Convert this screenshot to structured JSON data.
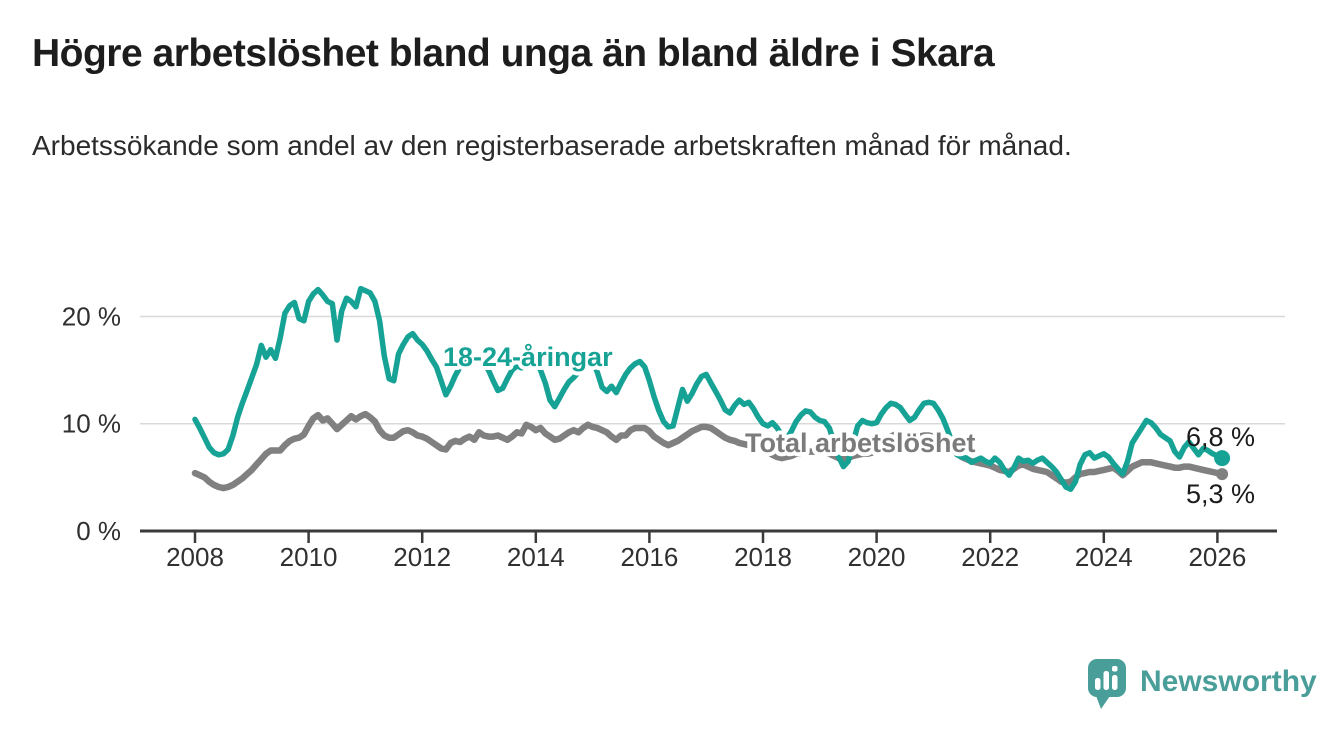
{
  "header": {
    "title": "Högre arbetslöshet bland unga än bland äldre i Skara",
    "subtitle": "Arbetssökande som andel av den registerbaserade arbetskraften månad för månad."
  },
  "chart": {
    "y_tick_labels": [
      "0 %",
      "10 %",
      "20 %"
    ],
    "x_tick_labels": [
      "2008",
      "2010",
      "2012",
      "2014",
      "2016",
      "2018",
      "2020",
      "2022",
      "2024",
      "2026"
    ],
    "youth_label": "18-24-åringar",
    "total_label": "Total arbetslöshet",
    "youth_end_label": "6,8 %",
    "total_end_label": "5,3 %",
    "colors": {
      "youth_line": "#17a296",
      "total_line": "#808080",
      "total_label_text": "#7b7b7b",
      "grid": "#d9d9d9",
      "axis": "#3a3a3a",
      "text": "#303030",
      "brand_teal": "#4a9e99"
    }
  },
  "chart_data": {
    "type": "line",
    "title": "Högre arbetslöshet bland unga än bland äldre i Skara",
    "subtitle": "Arbetssökande som andel av den registerbaserade arbetskraften månad för månad.",
    "unit": "percent",
    "x_start_year": 2008.0,
    "x_step": "1 month",
    "xlim": [
      2007.8,
      2027.0
    ],
    "ylim": [
      0,
      24
    ],
    "y_ticks": [
      0,
      10,
      20
    ],
    "x_ticks": [
      2008,
      2010,
      2012,
      2014,
      2016,
      2018,
      2020,
      2022,
      2024,
      2026
    ],
    "grid": "horizontal-only",
    "legend_position": "inline-labels",
    "series": [
      {
        "name": "18-24-åringar",
        "color": "#17a296",
        "end_value": 6.8,
        "end_value_label": "6,8 %",
        "values": [
          10.4,
          9.6,
          8.7,
          7.8,
          7.3,
          7.1,
          7.2,
          7.6,
          8.9,
          10.6,
          11.9,
          13.1,
          14.3,
          15.5,
          17.3,
          16.2,
          16.9,
          16.1,
          18.0,
          20.3,
          21.0,
          21.3,
          19.8,
          19.6,
          21.4,
          22.1,
          22.5,
          22.0,
          21.4,
          21.2,
          17.8,
          20.5,
          21.7,
          21.4,
          20.9,
          22.6,
          22.4,
          22.2,
          21.4,
          19.6,
          16.3,
          14.2,
          14.0,
          16.5,
          17.4,
          18.1,
          18.4,
          17.8,
          17.4,
          16.8,
          16.0,
          15.3,
          14.0,
          12.7,
          13.5,
          14.5,
          15.3,
          15.8,
          15.5,
          15.9,
          16.1,
          15.6,
          15.0,
          14.0,
          13.1,
          13.3,
          14.2,
          15.0,
          15.4,
          15.2,
          15.6,
          15.5,
          15.8,
          15.0,
          13.8,
          12.2,
          11.6,
          12.4,
          13.2,
          13.9,
          14.3,
          14.8,
          15.1,
          15.6,
          15.9,
          14.8,
          13.4,
          13.0,
          13.5,
          12.9,
          13.8,
          14.6,
          15.2,
          15.6,
          15.8,
          15.3,
          14.0,
          12.5,
          11.2,
          10.2,
          9.7,
          9.8,
          11.5,
          13.2,
          12.1,
          12.8,
          13.7,
          14.4,
          14.6,
          13.8,
          13.0,
          12.2,
          11.3,
          11.0,
          11.7,
          12.2,
          11.8,
          12.0,
          11.4,
          10.6,
          10.0,
          9.8,
          10.1,
          9.6,
          8.9,
          8.6,
          9.3,
          10.2,
          10.8,
          11.2,
          11.1,
          10.6,
          10.3,
          10.2,
          9.6,
          8.3,
          6.9,
          6.0,
          6.5,
          8.2,
          9.8,
          10.3,
          10.1,
          10.0,
          10.1,
          10.9,
          11.5,
          11.9,
          11.8,
          11.5,
          10.9,
          10.3,
          10.6,
          11.3,
          11.9,
          12.0,
          11.9,
          11.3,
          10.5,
          9.4,
          8.2,
          7.1,
          6.9,
          6.8,
          6.4,
          6.6,
          6.8,
          6.5,
          6.3,
          6.8,
          6.4,
          5.7,
          5.2,
          5.9,
          6.8,
          6.5,
          6.6,
          6.3,
          6.6,
          6.8,
          6.4,
          6.0,
          5.5,
          4.8,
          4.1,
          3.9,
          4.6,
          6.2,
          7.1,
          7.3,
          6.8,
          7.0,
          7.2,
          6.9,
          6.3,
          5.8,
          5.3,
          6.5,
          8.2,
          8.9,
          9.6,
          10.3,
          10.1,
          9.6,
          9.0,
          8.7,
          8.4,
          7.4,
          6.9,
          7.8,
          8.3,
          7.7,
          7.1,
          7.7,
          7.5,
          7.2,
          7.0,
          6.8
        ]
      },
      {
        "name": "Total arbetslöshet",
        "color": "#808080",
        "end_value": 5.3,
        "end_value_label": "5,3 %",
        "values": [
          5.4,
          5.2,
          5.0,
          4.6,
          4.3,
          4.1,
          4.0,
          4.1,
          4.3,
          4.6,
          4.9,
          5.3,
          5.7,
          6.2,
          6.7,
          7.2,
          7.5,
          7.5,
          7.5,
          8.0,
          8.4,
          8.6,
          8.7,
          9.0,
          9.8,
          10.5,
          10.8,
          10.3,
          10.5,
          10.0,
          9.5,
          9.9,
          10.3,
          10.7,
          10.4,
          10.7,
          10.9,
          10.6,
          10.2,
          9.4,
          8.9,
          8.7,
          8.7,
          9.0,
          9.3,
          9.4,
          9.2,
          8.9,
          8.8,
          8.6,
          8.3,
          8.0,
          7.7,
          7.6,
          8.2,
          8.4,
          8.3,
          8.6,
          8.8,
          8.5,
          9.2,
          8.9,
          8.8,
          8.8,
          8.9,
          8.7,
          8.5,
          8.8,
          9.2,
          9.1,
          9.9,
          9.7,
          9.4,
          9.6,
          9.1,
          8.8,
          8.5,
          8.6,
          8.9,
          9.2,
          9.4,
          9.2,
          9.6,
          9.9,
          9.7,
          9.6,
          9.4,
          9.2,
          8.8,
          8.5,
          8.9,
          8.9,
          9.4,
          9.6,
          9.6,
          9.6,
          9.3,
          8.8,
          8.5,
          8.2,
          8.0,
          8.2,
          8.4,
          8.7,
          9.0,
          9.3,
          9.5,
          9.7,
          9.7,
          9.6,
          9.3,
          9.0,
          8.7,
          8.5,
          8.4,
          8.2,
          8.1,
          8.0,
          7.9,
          7.8,
          7.6,
          7.4,
          7.1,
          6.9,
          6.8,
          6.9,
          7.0,
          7.2,
          7.3,
          7.4,
          7.4,
          7.4,
          7.4,
          7.4,
          7.2,
          7.0,
          6.8,
          6.7,
          6.8,
          7.0,
          7.1,
          7.2,
          7.2,
          7.3,
          7.5,
          7.9,
          8.4,
          8.8,
          9.0,
          9.1,
          9.0,
          8.9,
          8.8,
          8.8,
          8.9,
          8.9,
          8.8,
          8.6,
          8.3,
          8.0,
          7.6,
          7.2,
          6.9,
          6.7,
          6.5,
          6.4,
          6.3,
          6.2,
          6.1,
          5.9,
          5.7,
          5.6,
          5.5,
          5.8,
          6.1,
          6.2,
          6.0,
          5.8,
          5.7,
          5.6,
          5.5,
          5.2,
          4.9,
          4.6,
          4.5,
          4.6,
          5.0,
          5.3,
          5.4,
          5.5,
          5.5,
          5.6,
          5.7,
          5.8,
          5.9,
          5.6,
          5.2,
          5.6,
          6.0,
          6.2,
          6.4,
          6.4,
          6.4,
          6.3,
          6.2,
          6.1,
          6.0,
          5.9,
          5.9,
          6.0,
          6.0,
          5.9,
          5.8,
          5.7,
          5.6,
          5.5,
          5.4,
          5.3
        ]
      }
    ]
  },
  "footer": {
    "brand": "Newsworthy"
  }
}
